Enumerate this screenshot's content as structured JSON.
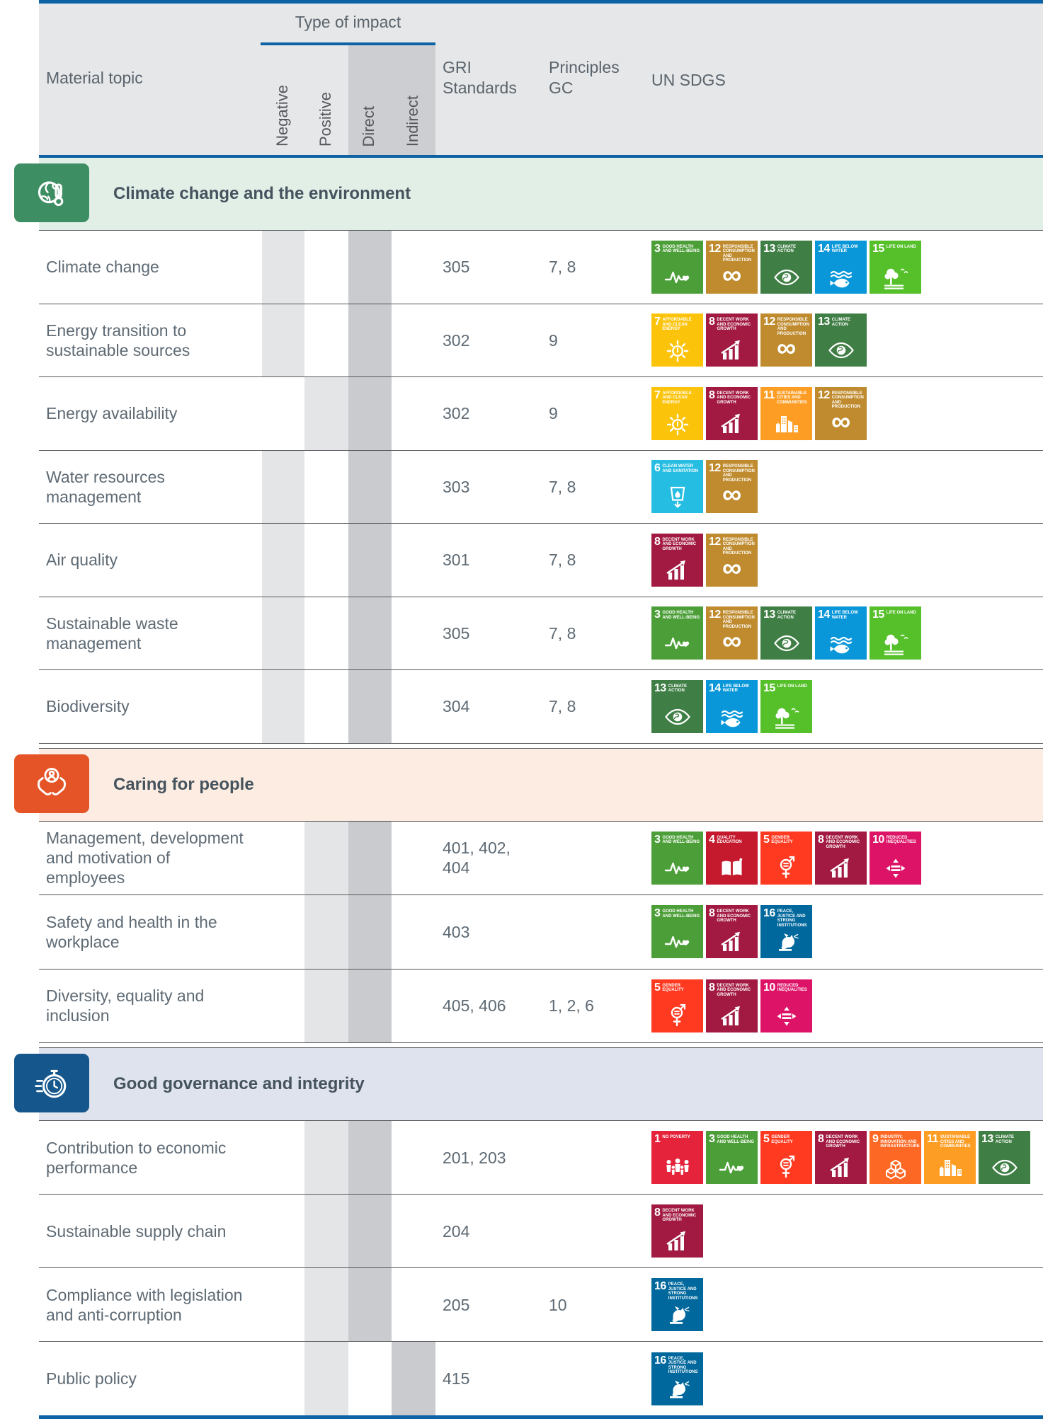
{
  "colors": {
    "blue": "#0e63a5",
    "header-bg": "#e6e7e9",
    "panel-dark": "#cdced1",
    "strip-light": "#e4e5e7",
    "strip-dark": "#c9cbce",
    "border": "#54575a",
    "text": "#5e6a74",
    "title-text": "#45535e",
    "htext": "#5a646c"
  },
  "table": {
    "header": {
      "material_topic": "Material topic",
      "type_of_impact": "Type of impact",
      "impact_columns": [
        "Negative",
        "Positive",
        "Direct",
        "Indirect"
      ],
      "gri_standards": [
        "GRI",
        "Standards"
      ],
      "principles_gc": [
        "Principles",
        "GC"
      ],
      "un_sdgs": "UN SDGS"
    },
    "sections": [
      {
        "id": "climate",
        "title": "Climate change and the environment",
        "icon": "globe-thermometer-icon",
        "band_color": "#e2efe7",
        "icon_bg": "#3e8e63",
        "rows": [
          {
            "topic_lines": [
              "Climate change"
            ],
            "gri_lines": [
              "305"
            ],
            "gc": "7, 8",
            "impacts": [
              "Negative",
              "Direct"
            ],
            "sdgs": [
              3,
              12,
              13,
              14,
              15
            ]
          },
          {
            "topic_lines": [
              "Energy transition to",
              "sustainable sources"
            ],
            "gri_lines": [
              "302"
            ],
            "gc": "9",
            "impacts": [
              "Negative",
              "Direct"
            ],
            "sdgs": [
              7,
              8,
              12,
              13
            ]
          },
          {
            "topic_lines": [
              "Energy availability"
            ],
            "gri_lines": [
              "302"
            ],
            "gc": "9",
            "impacts": [
              "Positive",
              "Direct"
            ],
            "sdgs": [
              7,
              8,
              11,
              12
            ]
          },
          {
            "topic_lines": [
              "Water resources",
              "management"
            ],
            "gri_lines": [
              "303"
            ],
            "gc": "7, 8",
            "impacts": [
              "Negative",
              "Direct"
            ],
            "sdgs": [
              6,
              12
            ]
          },
          {
            "topic_lines": [
              "Air quality"
            ],
            "gri_lines": [
              "301"
            ],
            "gc": "7, 8",
            "impacts": [
              "Negative",
              "Direct"
            ],
            "sdgs": [
              8,
              12
            ]
          },
          {
            "topic_lines": [
              "Sustainable waste",
              "management"
            ],
            "gri_lines": [
              "305"
            ],
            "gc": "7, 8",
            "impacts": [
              "Negative",
              "Direct"
            ],
            "sdgs": [
              3,
              12,
              13,
              14,
              15
            ]
          },
          {
            "topic_lines": [
              "Biodiversity"
            ],
            "gri_lines": [
              "304"
            ],
            "gc": "7, 8",
            "impacts": [
              "Negative",
              "Direct"
            ],
            "sdgs": [
              13,
              14,
              15
            ]
          }
        ]
      },
      {
        "id": "people",
        "title": "Caring for people",
        "icon": "hands-person-icon",
        "band_color": "#fcece1",
        "icon_bg": "#e55426",
        "rows": [
          {
            "topic_lines": [
              "Management, development",
              "and motivation of",
              "employees"
            ],
            "gri_lines": [
              "401, 402,",
              "404"
            ],
            "gc": "",
            "impacts": [
              "Positive",
              "Direct"
            ],
            "sdgs": [
              3,
              4,
              5,
              8,
              10
            ]
          },
          {
            "topic_lines": [
              "Safety and health in the",
              "workplace"
            ],
            "gri_lines": [
              "403"
            ],
            "gc": "",
            "impacts": [
              "Positive",
              "Direct"
            ],
            "sdgs": [
              3,
              8,
              16
            ]
          },
          {
            "topic_lines": [
              "Diversity, equality and",
              "inclusion"
            ],
            "gri_lines": [
              "405, 406"
            ],
            "gc": "1, 2, 6",
            "impacts": [
              "Positive",
              "Direct"
            ],
            "sdgs": [
              5,
              8,
              10
            ]
          }
        ]
      },
      {
        "id": "governance",
        "title": "Good governance and integrity",
        "icon": "stopwatch-icon",
        "band_color": "#dfe3ee",
        "icon_bg": "#15578c",
        "rows": [
          {
            "topic_lines": [
              "Contribution to economic",
              "performance"
            ],
            "gri_lines": [
              "201, 203"
            ],
            "gc": "",
            "impacts": [
              "Positive",
              "Direct"
            ],
            "sdgs": [
              1,
              3,
              5,
              8,
              9,
              11,
              13
            ]
          },
          {
            "topic_lines": [
              "Sustainable supply chain"
            ],
            "gri_lines": [
              "204"
            ],
            "gc": "",
            "impacts": [
              "Positive",
              "Direct"
            ],
            "sdgs": [
              8
            ]
          },
          {
            "topic_lines": [
              "Compliance with legislation",
              "and anti-corruption"
            ],
            "gri_lines": [
              "205"
            ],
            "gc": "10",
            "impacts": [
              "Positive",
              "Direct"
            ],
            "sdgs": [
              16
            ]
          },
          {
            "topic_lines": [
              "Public policy"
            ],
            "gri_lines": [
              "415"
            ],
            "gc": "",
            "impacts": [
              "Positive",
              "Indirect"
            ],
            "sdgs": [
              16
            ]
          }
        ]
      }
    ]
  },
  "sdg_catalog": {
    "1": {
      "number": "1",
      "title": "NO POVERTY",
      "color": "#e5243b"
    },
    "3": {
      "number": "3",
      "title": "GOOD HEALTH AND WELL-BEING",
      "color": "#4c9f38"
    },
    "4": {
      "number": "4",
      "title": "QUALITY EDUCATION",
      "color": "#c5192d"
    },
    "5": {
      "number": "5",
      "title": "GENDER EQUALITY",
      "color": "#ff3a21"
    },
    "6": {
      "number": "6",
      "title": "CLEAN WATER AND SANITATION",
      "color": "#26bde2"
    },
    "7": {
      "number": "7",
      "title": "AFFORDABLE AND CLEAN ENERGY",
      "color": "#fcc30b"
    },
    "8": {
      "number": "8",
      "title": "DECENT WORK AND ECONOMIC GROWTH",
      "color": "#a21942"
    },
    "9": {
      "number": "9",
      "title": "INDUSTRY, INNOVATION AND INFRASTRUCTURE",
      "color": "#fd6925"
    },
    "10": {
      "number": "10",
      "title": "REDUCED INEQUALITIES",
      "color": "#dd1367"
    },
    "11": {
      "number": "11",
      "title": "SUSTAINABLE CITIES AND COMMUNITIES",
      "color": "#fd9d24"
    },
    "12": {
      "number": "12",
      "title": "RESPONSIBLE CONSUMPTION AND PRODUCTION",
      "color": "#bf8b2e"
    },
    "13": {
      "number": "13",
      "title": "CLIMATE ACTION",
      "color": "#3f7e44"
    },
    "14": {
      "number": "14",
      "title": "LIFE BELOW WATER",
      "color": "#0a97d9"
    },
    "15": {
      "number": "15",
      "title": "LIFE ON LAND",
      "color": "#56c02b"
    },
    "16": {
      "number": "16",
      "title": "PEACE, JUSTICE AND STRONG INSTITUTIONS",
      "color": "#00689d"
    }
  }
}
